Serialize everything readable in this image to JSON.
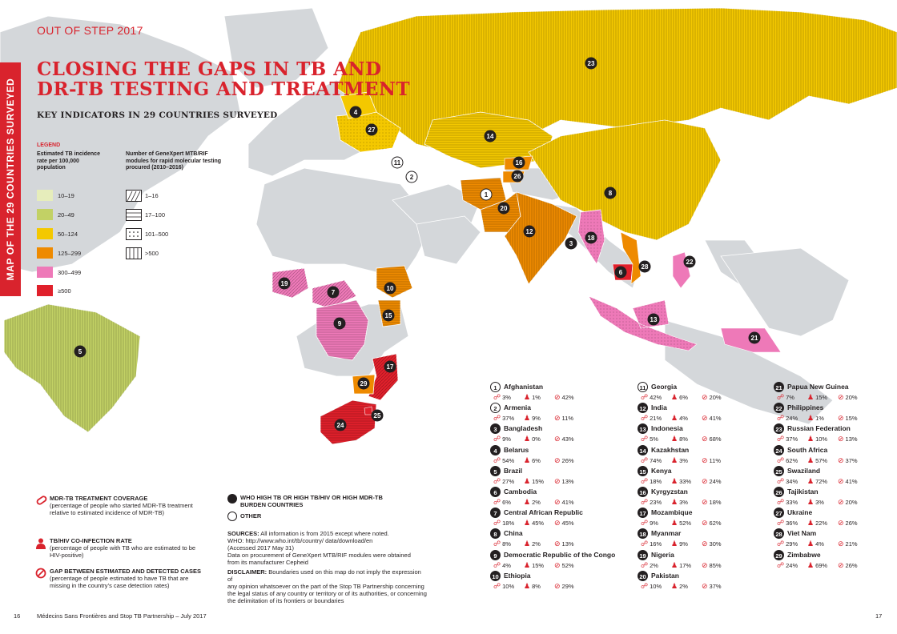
{
  "header": "OUT OF STEP 2017",
  "side_label": "MAP OF THE 29 COUNTRIES SURVEYED",
  "title": "CLOSING THE GAPS IN TB AND DR-TB TESTING AND TREATMENT",
  "subtitle": "KEY INDICATORS IN 29 COUNTRIES SURVEYED",
  "legend": {
    "heading": "LEGEND",
    "incidence_title": "Estimated TB incidence rate per 100,000 population",
    "incidence": [
      {
        "label": "10–19",
        "color": "#e6edbb"
      },
      {
        "label": "20–49",
        "color": "#c2d165"
      },
      {
        "label": "50–124",
        "color": "#f4c800"
      },
      {
        "label": "125–299",
        "color": "#ee8a00"
      },
      {
        "label": "300–499",
        "color": "#ee79b8"
      },
      {
        "label": "≥500",
        "color": "#e0202b"
      }
    ],
    "genexpert_title": "Number of GeneXpert MTB/RIF modules for rapid molecular testing procured (2010–2016)",
    "genexpert": [
      {
        "label": "1–16",
        "icon": "diagonal-hatch-icon"
      },
      {
        "label": "17–100",
        "icon": "horizontal-lines-icon"
      },
      {
        "label": "101–500",
        "icon": "dots-icon"
      },
      {
        "label": ">500",
        "icon": "vertical-lines-icon"
      }
    ]
  },
  "key": [
    {
      "icon": "pill-icon",
      "title": "MDR-TB TREATMENT COVERAGE",
      "text": "(percentage of people who started MDR-TB treatment relative to estimated incidence of MDR-TB)"
    },
    {
      "icon": "person-icon",
      "title": "TB/HIV CO-INFECTION RATE",
      "text": "(percentage of people with TB who are estimated to be HIV-positive)"
    },
    {
      "icon": "gap-icon",
      "title": "GAP BETWEEN ESTIMATED AND DETECTED CASES",
      "text": "(percentage of people estimated to have TB that are missing in the country’s case detection rates)"
    }
  ],
  "burden": {
    "filled": "WHO HIGH TB OR HIGH TB/HIV OR HIGH MDR-TB BURDEN COUNTRIES",
    "other": "OTHER"
  },
  "sources": {
    "label": "SOURCES:",
    "text1": "All information is from 2015 except where noted.",
    "text2": "WHO: http://www.who.int/tb/country/ data/download/en",
    "text3": "(Accessed 2017 May 31)",
    "text4": "Data on procurement of GeneXpert MTB/RIF modules were obtained",
    "text5": "from its manufacturer Cepheid"
  },
  "disclaimer": {
    "label": "DISCLAIMER:",
    "text1": "Boundaries used on this map do not imply the expression of",
    "text2": "any opinion whatsoever on the part of the Stop TB Partnership concerning",
    "text3": "the legal status of any country or territory or of its authorities, or concerning",
    "text4": "the delimitation of its frontiers or boundaries"
  },
  "countries": [
    {
      "n": "1",
      "name": "Afghanistan",
      "mdr": "3%",
      "hiv": "1%",
      "gap": "42%",
      "high": false
    },
    {
      "n": "2",
      "name": "Armenia",
      "mdr": "37%",
      "hiv": "9%",
      "gap": "11%",
      "high": false
    },
    {
      "n": "3",
      "name": "Bangladesh",
      "mdr": "9%",
      "hiv": "0%",
      "gap": "43%",
      "high": true
    },
    {
      "n": "4",
      "name": "Belarus",
      "mdr": "54%",
      "hiv": "6%",
      "gap": "26%",
      "high": true
    },
    {
      "n": "5",
      "name": "Brazil",
      "mdr": "27%",
      "hiv": "15%",
      "gap": "13%",
      "high": true
    },
    {
      "n": "6",
      "name": "Cambodia",
      "mdr": "6%",
      "hiv": "2%",
      "gap": "41%",
      "high": true
    },
    {
      "n": "7",
      "name": "Central African Republic",
      "mdr": "18%",
      "hiv": "45%",
      "gap": "45%",
      "high": true
    },
    {
      "n": "8",
      "name": "China",
      "mdr": "8%",
      "hiv": "2%",
      "gap": "13%",
      "high": true
    },
    {
      "n": "9",
      "name": "Democratic Republic of the Congo",
      "mdr": "4%",
      "hiv": "15%",
      "gap": "52%",
      "high": true
    },
    {
      "n": "10",
      "name": "Ethiopia",
      "mdr": "10%",
      "hiv": "8%",
      "gap": "29%",
      "high": true
    },
    {
      "n": "11",
      "name": "Georgia",
      "mdr": "42%",
      "hiv": "6%",
      "gap": "20%",
      "high": false
    },
    {
      "n": "12",
      "name": "India",
      "mdr": "21%",
      "hiv": "4%",
      "gap": "41%",
      "high": true
    },
    {
      "n": "13",
      "name": "Indonesia",
      "mdr": "5%",
      "hiv": "8%",
      "gap": "68%",
      "high": true
    },
    {
      "n": "14",
      "name": "Kazakhstan",
      "mdr": "74%",
      "hiv": "3%",
      "gap": "11%",
      "high": true
    },
    {
      "n": "15",
      "name": "Kenya",
      "mdr": "18%",
      "hiv": "33%",
      "gap": "24%",
      "high": true
    },
    {
      "n": "16",
      "name": "Kyrgyzstan",
      "mdr": "23%",
      "hiv": "3%",
      "gap": "18%",
      "high": true
    },
    {
      "n": "17",
      "name": "Mozambique",
      "mdr": "9%",
      "hiv": "52%",
      "gap": "62%",
      "high": true
    },
    {
      "n": "18",
      "name": "Myanmar",
      "mdr": "16%",
      "hiv": "9%",
      "gap": "30%",
      "high": true
    },
    {
      "n": "19",
      "name": "Nigeria",
      "mdr": "2%",
      "hiv": "17%",
      "gap": "85%",
      "high": true
    },
    {
      "n": "20",
      "name": "Pakistan",
      "mdr": "10%",
      "hiv": "2%",
      "gap": "37%",
      "high": true
    },
    {
      "n": "21",
      "name": "Papua New Guinea",
      "mdr": "7%",
      "hiv": "15%",
      "gap": "20%",
      "high": true
    },
    {
      "n": "22",
      "name": "Philippines",
      "mdr": "24%",
      "hiv": "1%",
      "gap": "15%",
      "high": true
    },
    {
      "n": "23",
      "name": "Russian Federation",
      "mdr": "37%",
      "hiv": "10%",
      "gap": "13%",
      "high": true
    },
    {
      "n": "24",
      "name": "South Africa",
      "mdr": "62%",
      "hiv": "57%",
      "gap": "37%",
      "high": true
    },
    {
      "n": "25",
      "name": "Swaziland",
      "mdr": "34%",
      "hiv": "72%",
      "gap": "41%",
      "high": true
    },
    {
      "n": "26",
      "name": "Tajikistan",
      "mdr": "33%",
      "hiv": "3%",
      "gap": "20%",
      "high": true
    },
    {
      "n": "27",
      "name": "Ukraine",
      "mdr": "36%",
      "hiv": "22%",
      "gap": "26%",
      "high": true
    },
    {
      "n": "28",
      "name": "Viet Nam",
      "mdr": "29%",
      "hiv": "4%",
      "gap": "21%",
      "high": true
    },
    {
      "n": "29",
      "name": "Zimbabwe",
      "mdr": "24%",
      "hiv": "69%",
      "gap": "26%",
      "high": true
    }
  ],
  "footer": {
    "page_left": "16",
    "credit": "Médecins Sans Frontières and Stop TB Partnership – July 2017",
    "page_right": "17"
  },
  "colors": {
    "accent": "#d9232d",
    "land": "#d4d7da",
    "ink": "#231f20"
  }
}
